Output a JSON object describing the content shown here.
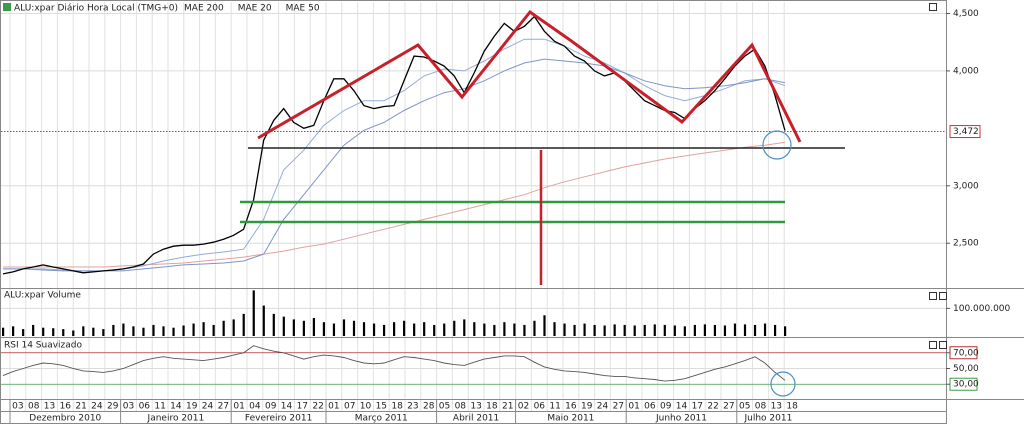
{
  "header": {
    "title": "ALU:xpar Diário Hora Local (TMG+0)"
  },
  "chart_data": [
    {
      "type": "line",
      "color": "#000000",
      "ylim": [
        2110,
        4600
      ],
      "yticks": [
        {
          "value": 2500,
          "label": "2,500"
        },
        {
          "value": 3000,
          "label": "3,000"
        },
        {
          "value": 4000,
          "label": "4,000"
        },
        {
          "value": 4500,
          "label": "4,500"
        }
      ],
      "grid": true,
      "last_price": {
        "value": 3472,
        "label": "3,472"
      },
      "values": [
        2233,
        2250,
        2276,
        2293,
        2311,
        2293,
        2276,
        2259,
        2242,
        2250,
        2259,
        2267,
        2276,
        2293,
        2319,
        2405,
        2448,
        2474,
        2483,
        2483,
        2492,
        2509,
        2535,
        2569,
        2621,
        2879,
        3397,
        3569,
        3672,
        3552,
        3500,
        3526,
        3741,
        3931,
        3931,
        3828,
        3698,
        3672,
        3690,
        3698,
        3914,
        4129,
        4121,
        4086,
        4043,
        3957,
        3810,
        3983,
        4172,
        4302,
        4414,
        4345,
        4388,
        4474,
        4345,
        4259,
        4216,
        4129,
        4086,
        4000,
        3957,
        3983,
        3914,
        3828,
        3741,
        3698,
        3655,
        3638,
        3586,
        3672,
        3741,
        3828,
        3931,
        4043,
        4129,
        4190,
        4043,
        3785,
        3480
      ],
      "series": [
        {
          "name": "MAE 200",
          "color": "#e3a0a0",
          "label_color": "#c0392b",
          "values": [
            2293,
            2293,
            2293,
            2293,
            2293,
            2293,
            2302,
            2311,
            2319,
            2328,
            2345,
            2362,
            2379,
            2405,
            2431,
            2466,
            2492,
            2535,
            2578,
            2621,
            2664,
            2707,
            2750,
            2793,
            2836,
            2879,
            2922,
            2983,
            3035,
            3078,
            3121,
            3164,
            3198,
            3233,
            3259,
            3285,
            3310,
            3336,
            3353,
            3379
          ]
        },
        {
          "name": "MAE 20",
          "color": "#93acd9",
          "label_color": "#5b7fc4",
          "values": [
            2276,
            2276,
            2276,
            2267,
            2259,
            2259,
            2276,
            2302,
            2345,
            2379,
            2405,
            2423,
            2448,
            2707,
            3138,
            3310,
            3526,
            3655,
            3741,
            3741,
            3828,
            3957,
            4017,
            4000,
            4086,
            4190,
            4276,
            4276,
            4216,
            4129,
            4069,
            3983,
            3871,
            3785,
            3741,
            3785,
            3845,
            3914,
            3931,
            3871
          ]
        },
        {
          "name": "MAE 50",
          "color": "#7f95c4",
          "label_color": "#3c9a4a",
          "values": [
            2276,
            2276,
            2267,
            2259,
            2259,
            2259,
            2259,
            2276,
            2293,
            2311,
            2319,
            2328,
            2345,
            2405,
            2707,
            2922,
            3138,
            3353,
            3483,
            3552,
            3655,
            3741,
            3810,
            3845,
            3914,
            4000,
            4069,
            4103,
            4086,
            4069,
            4043,
            3983,
            3914,
            3871,
            3845,
            3853,
            3871,
            3897,
            3931,
            3897
          ]
        }
      ]
    },
    {
      "type": "bar",
      "title": "ALU:xpar Volume",
      "color": "#000000",
      "ylim": [
        0,
        170000000
      ],
      "yticks": [
        {
          "value": 100000000,
          "label": "100.000.000"
        }
      ],
      "values": [
        30000000,
        35000000,
        25000000,
        40000000,
        30000000,
        28000000,
        25000000,
        20000000,
        35000000,
        30000000,
        25000000,
        40000000,
        45000000,
        35000000,
        30000000,
        40000000,
        35000000,
        30000000,
        38000000,
        45000000,
        50000000,
        40000000,
        55000000,
        60000000,
        80000000,
        165000000,
        110000000,
        80000000,
        70000000,
        60000000,
        55000000,
        65000000,
        50000000,
        45000000,
        60000000,
        55000000,
        50000000,
        45000000,
        40000000,
        50000000,
        55000000,
        45000000,
        50000000,
        40000000,
        45000000,
        55000000,
        60000000,
        50000000,
        45000000,
        40000000,
        50000000,
        45000000,
        40000000,
        55000000,
        75000000,
        50000000,
        45000000,
        40000000,
        45000000,
        40000000,
        38000000,
        42000000,
        40000000,
        38000000,
        40000000,
        42000000,
        40000000,
        38000000,
        35000000,
        40000000,
        42000000,
        40000000,
        38000000,
        45000000,
        42000000,
        40000000,
        45000000,
        40000000,
        35000000
      ]
    },
    {
      "type": "line",
      "title": "RSI 14 Suavizado",
      "color": "#555555",
      "ylim": [
        12.5,
        87.5
      ],
      "yticks": [
        {
          "value": 70,
          "label": "70,00",
          "color": "#b03030"
        },
        {
          "value": 50,
          "label": "50,00"
        },
        {
          "value": 30,
          "label": "30,00",
          "color": "#3c9a4a"
        }
      ],
      "values": [
        41,
        46,
        50,
        54,
        57,
        56,
        54,
        50,
        47,
        46,
        45,
        47,
        50,
        55,
        60,
        63,
        65,
        63,
        62,
        61,
        60,
        62,
        64,
        67,
        70,
        79,
        75,
        72,
        70,
        66,
        62,
        65,
        67,
        66,
        64,
        60,
        57,
        56,
        57,
        61,
        65,
        64,
        62,
        60,
        57,
        55,
        54,
        58,
        62,
        64,
        66,
        66,
        65,
        58,
        52,
        49,
        47,
        46,
        45,
        43,
        41,
        40,
        40,
        38,
        37,
        36,
        34,
        35,
        37,
        41,
        45,
        49,
        52,
        56,
        60,
        65,
        57,
        45,
        35
      ]
    }
  ],
  "x_axis": {
    "months": [
      {
        "label": "Dezembro 2010",
        "days": [
          "03",
          "08",
          "13",
          "16",
          "21",
          "24",
          "29"
        ]
      },
      {
        "label": "Janeiro 2011",
        "days": [
          "03",
          "06",
          "11",
          "14",
          "19",
          "24",
          "27"
        ]
      },
      {
        "label": "Fevereiro 2011",
        "days": [
          "01",
          "04",
          "09",
          "14",
          "17",
          "22"
        ]
      },
      {
        "label": "Março 2011",
        "days": [
          "01",
          "07",
          "10",
          "15",
          "18",
          "23",
          "28"
        ]
      },
      {
        "label": "Abril 2011",
        "days": [
          "05",
          "08",
          "13",
          "18",
          "21"
        ]
      },
      {
        "label": "Maio 2011",
        "days": [
          "02",
          "06",
          "11",
          "16",
          "19",
          "24",
          "27"
        ]
      },
      {
        "label": "Junho 2011",
        "days": [
          "01",
          "06",
          "09",
          "14",
          "17",
          "22",
          "27"
        ]
      },
      {
        "label": "Julho 2011",
        "days": [
          "05",
          "08",
          "13",
          "18"
        ]
      }
    ]
  }
}
